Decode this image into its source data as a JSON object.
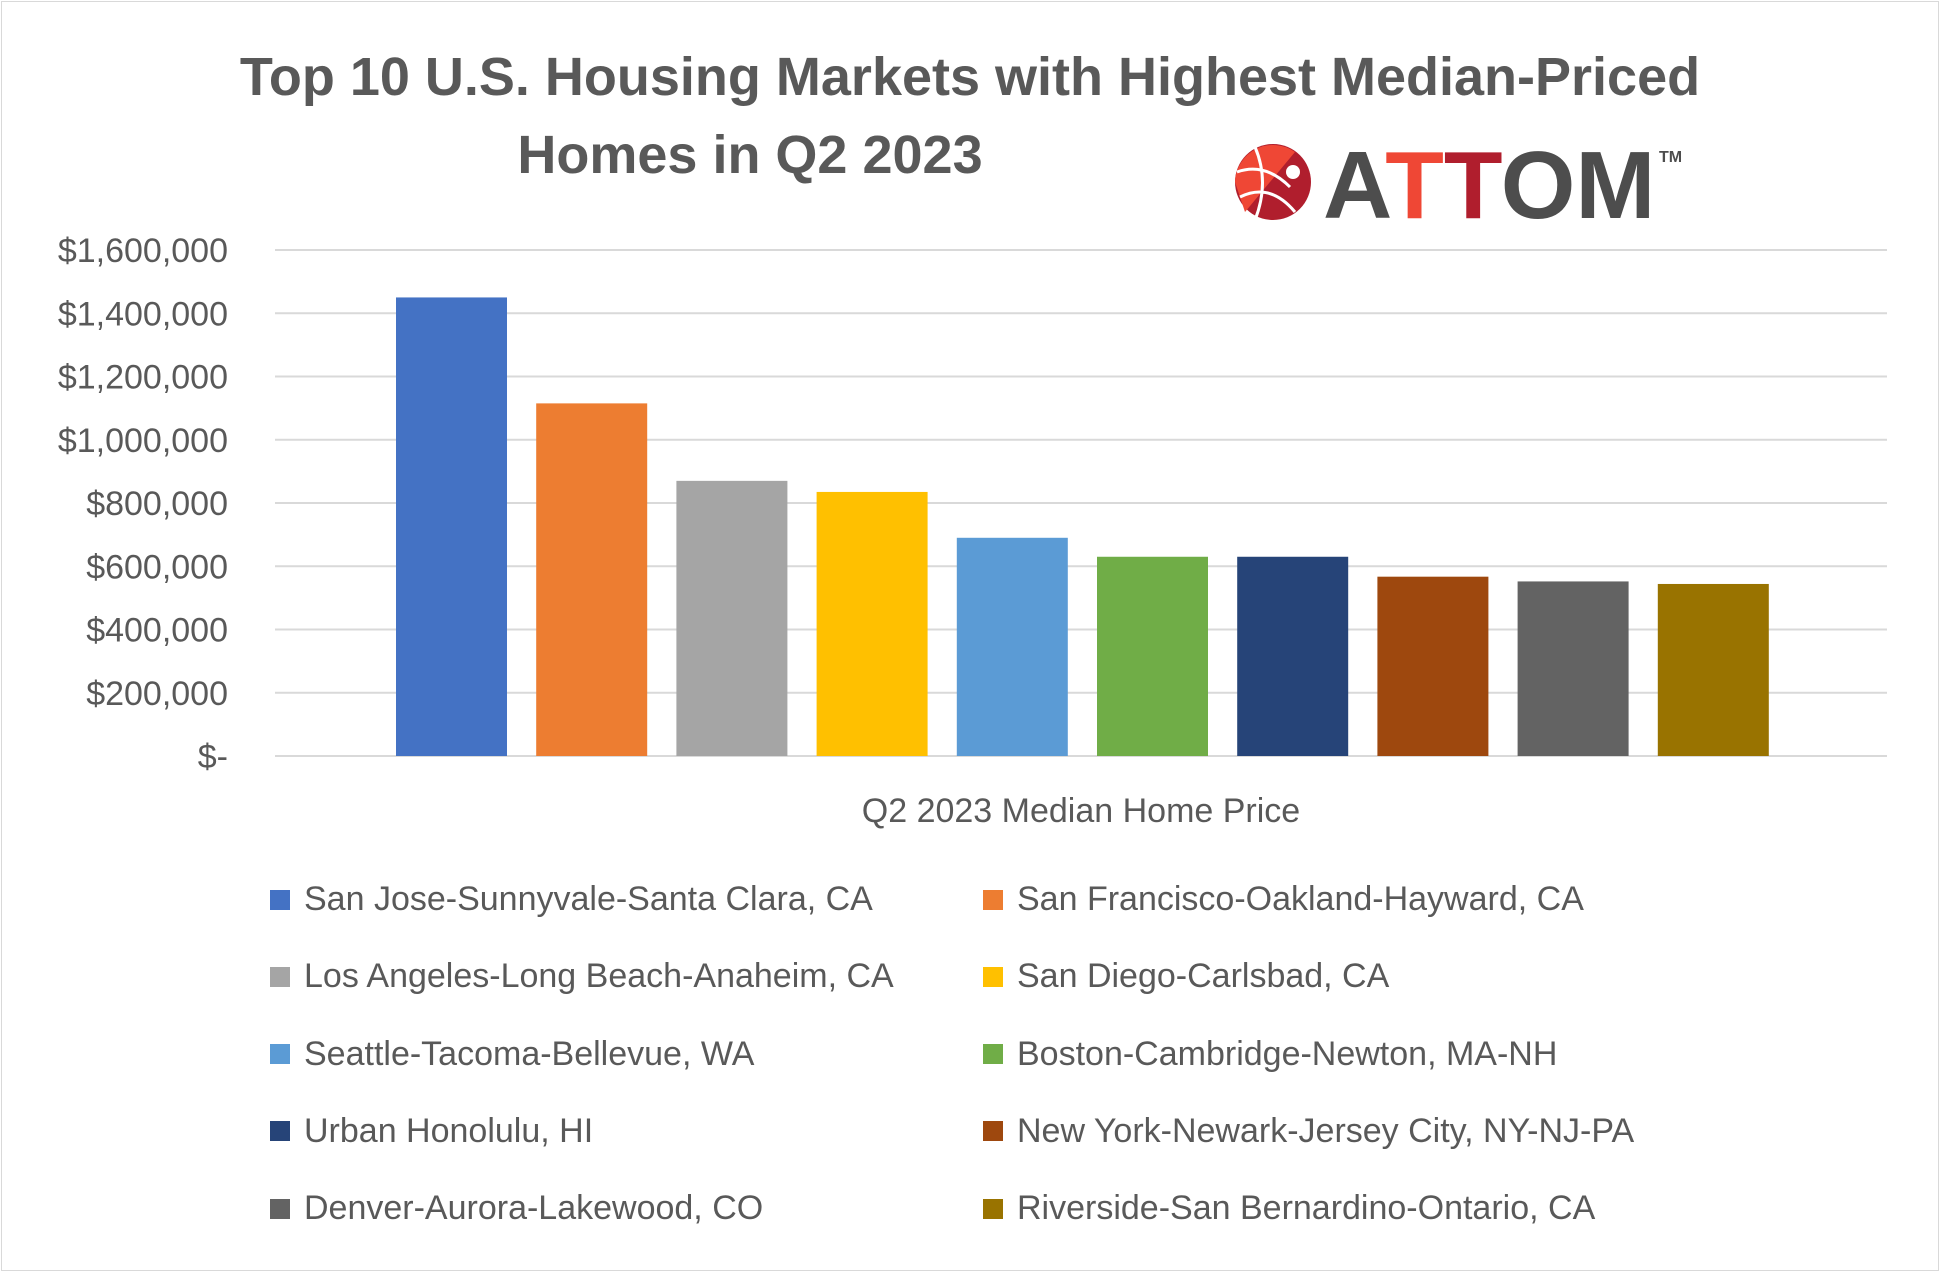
{
  "chart_data": {
    "type": "bar",
    "title_lines": [
      "Top 10 U.S. Housing Markets with Highest Median-Priced",
      "Homes in Q2 2023"
    ],
    "xlabel": "Q2 2023 Median Home Price",
    "ylabel": "",
    "ylim": [
      0,
      1600000
    ],
    "yticks": [
      0,
      200000,
      400000,
      600000,
      800000,
      1000000,
      1200000,
      1400000,
      1600000
    ],
    "ytick_labels": [
      "$-",
      "$200,000",
      "$400,000",
      "$600,000",
      "$800,000",
      "$1,000,000",
      "$1,200,000",
      "$1,400,000",
      "$1,600,000"
    ],
    "grid": true,
    "legend_placement": "bottom",
    "series": [
      {
        "name": "San Jose-Sunnyvale-Santa Clara, CA",
        "value": 1450000,
        "color": "#4472c4"
      },
      {
        "name": "San Francisco-Oakland-Hayward, CA",
        "value": 1115000,
        "color": "#ed7d31"
      },
      {
        "name": "Los Angeles-Long Beach-Anaheim, CA",
        "value": 870000,
        "color": "#a5a5a5"
      },
      {
        "name": "San Diego-Carlsbad, CA",
        "value": 835000,
        "color": "#ffc000"
      },
      {
        "name": "Seattle-Tacoma-Bellevue, WA",
        "value": 690000,
        "color": "#5b9bd5"
      },
      {
        "name": "Boston-Cambridge-Newton, MA-NH",
        "value": 630000,
        "color": "#70ad47"
      },
      {
        "name": "Urban Honolulu, HI",
        "value": 630000,
        "color": "#264478"
      },
      {
        "name": "New York-Newark-Jersey City, NY-NJ-PA",
        "value": 567000,
        "color": "#9e480e"
      },
      {
        "name": "Denver-Aurora-Lakewood, CO",
        "value": 552000,
        "color": "#636363"
      },
      {
        "name": "Riverside-San Bernardino-Ontario, CA",
        "value": 544000,
        "color": "#997300"
      }
    ]
  },
  "logo": {
    "text": "ATTOM",
    "trademark": "TM"
  }
}
